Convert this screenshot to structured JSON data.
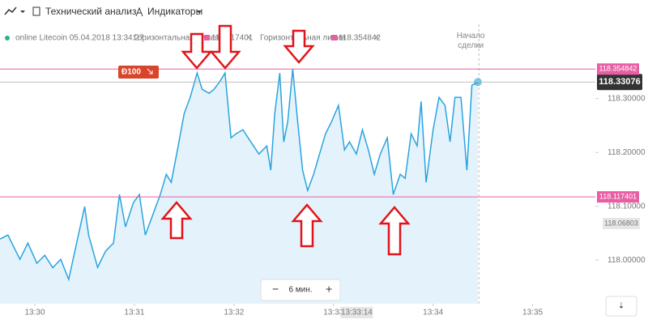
{
  "toolbar": {
    "analysis": "Технический анализ",
    "indicators": "Индикаторы"
  },
  "chart_data": {
    "type": "line",
    "legend": {
      "asset": "online Litecoin 05.04.2018 13:34:27"
    },
    "series": [
      {
        "color": "#2aa3df",
        "x": [
          809.65,
          809.73,
          809.77,
          809.85,
          809.93,
          810.02,
          810.1,
          810.18,
          810.26,
          810.34,
          810.42,
          810.5,
          810.54,
          810.63,
          810.71,
          810.79,
          810.85,
          810.91,
          810.99,
          811.05,
          811.11,
          811.2,
          811.26,
          811.32,
          811.37,
          811.44,
          811.5,
          811.56,
          811.63,
          811.68,
          811.75,
          811.8,
          811.86,
          811.91,
          811.97,
          812.02,
          812.09,
          812.17,
          812.25,
          812.33,
          812.37,
          812.41,
          812.46,
          812.5,
          812.54,
          812.59,
          812.64,
          812.69,
          812.74,
          812.8,
          812.86,
          812.92,
          812.98,
          813.05,
          813.11,
          813.16,
          813.23,
          813.29,
          813.35,
          813.41,
          813.47,
          813.54,
          813.6,
          813.67,
          813.72,
          813.78,
          813.84,
          813.88,
          813.93,
          814.0,
          814.06,
          814.12,
          814.17,
          814.22,
          814.28,
          814.34,
          814.39,
          814.45
        ],
        "values": [
          118.0391,
          118.0466,
          118.0316,
          118.0015,
          118.0316,
          117.994,
          118.009,
          117.986,
          118.0015,
          117.964,
          118.0316,
          118.0992,
          118.0466,
          117.9865,
          118.0165,
          118.0316,
          118.1218,
          118.0617,
          118.1068,
          118.1218,
          118.0466,
          118.0917,
          118.1218,
          118.1594,
          118.1444,
          118.212,
          118.2722,
          118.3023,
          118.3474,
          118.3173,
          118.3098,
          118.3173,
          118.3323,
          118.3474,
          118.2271,
          118.2346,
          118.2421,
          118.2195,
          118.197,
          118.212,
          118.1669,
          118.2722,
          118.3474,
          118.2195,
          118.2571,
          118.3549,
          118.2571,
          118.1669,
          118.1293,
          118.1594,
          118.197,
          118.2346,
          118.2571,
          118.2872,
          118.2045,
          118.2195,
          118.197,
          118.2421,
          118.2045,
          118.1594,
          118.197,
          118.2271,
          118.1218,
          118.1594,
          118.1519,
          118.2346,
          118.212,
          118.2947,
          118.1444,
          118.2421,
          118.3023,
          118.2872,
          118.2195,
          118.3023,
          118.3023,
          118.1669,
          118.3248,
          118.33076
        ]
      }
    ],
    "xlim": [
      809.65,
      815.63
    ],
    "ylim": [
      117.919,
      118.438
    ],
    "xticks": [
      {
        "value": 810,
        "label": "13:30"
      },
      {
        "value": 811,
        "label": "13:31"
      },
      {
        "value": 812,
        "label": "13:32"
      },
      {
        "value": 813,
        "label": "13:33"
      },
      {
        "value": 814,
        "label": "13:34"
      },
      {
        "value": 815,
        "label": "13:35"
      }
    ],
    "yticks": [
      {
        "value": 118.0,
        "label": "118.00000"
      },
      {
        "value": 118.1,
        "label": "118.10000"
      },
      {
        "value": 118.2,
        "label": "118.20000"
      },
      {
        "value": 118.3,
        "label": "118.30000"
      }
    ],
    "hlines": [
      {
        "name": "Горизонтальная линия",
        "value": 118.117401,
        "color": "#e85ea5"
      },
      {
        "name": "Горизонтальная линия",
        "value": 118.354842,
        "color": "#e85ea5"
      }
    ],
    "current_price": 118.33076,
    "price_marker": 118.06803,
    "cursor_time": {
      "value": 813.233,
      "label": "13:33:14"
    },
    "deal_start": {
      "x": 814.46,
      "label": "Начало сделки"
    },
    "position": {
      "amount": "Ð100"
    },
    "zoom": {
      "interval": "6 мин."
    }
  }
}
